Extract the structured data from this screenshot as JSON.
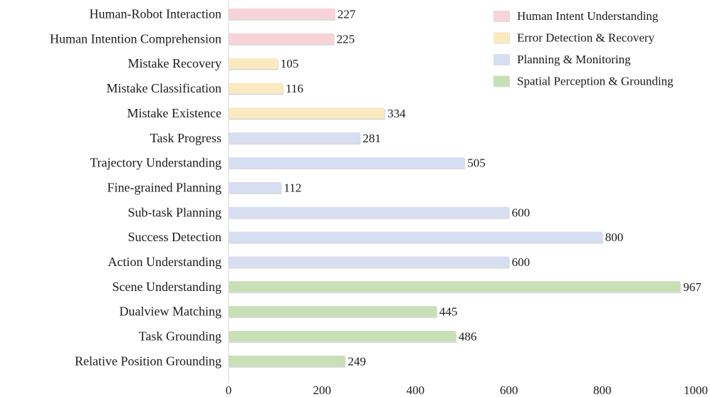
{
  "chart_data": {
    "type": "bar",
    "orientation": "horizontal",
    "title": "",
    "xlabel": "",
    "ylabel": "",
    "xlim": [
      0,
      1000
    ],
    "xticks": [
      0,
      200,
      400,
      600,
      800,
      1000
    ],
    "grid": false,
    "legend_position": "top-right",
    "groups": [
      {
        "name": "Human Intent Understanding",
        "color": "#f8d3d9"
      },
      {
        "name": "Error Detection & Recovery",
        "color": "#fbeac0"
      },
      {
        "name": "Planning & Monitoring",
        "color": "#d7def2"
      },
      {
        "name": "Spatial Perception & Grounding",
        "color": "#c7e0b6"
      }
    ],
    "bars": [
      {
        "category": "Human-Robot Interaction",
        "value": 227,
        "group": 0
      },
      {
        "category": "Human Intention Comprehension",
        "value": 225,
        "group": 0
      },
      {
        "category": "Mistake Recovery",
        "value": 105,
        "group": 1
      },
      {
        "category": "Mistake Classification",
        "value": 116,
        "group": 1
      },
      {
        "category": "Mistake Existence",
        "value": 334,
        "group": 1
      },
      {
        "category": "Task Progress",
        "value": 281,
        "group": 2
      },
      {
        "category": "Trajectory Understanding",
        "value": 505,
        "group": 2
      },
      {
        "category": "Fine-grained Planning",
        "value": 112,
        "group": 2
      },
      {
        "category": "Sub-task Planning",
        "value": 600,
        "group": 2
      },
      {
        "category": "Success Detection",
        "value": 800,
        "group": 2
      },
      {
        "category": "Action Understanding",
        "value": 600,
        "group": 2
      },
      {
        "category": "Scene Understanding",
        "value": 967,
        "group": 3
      },
      {
        "category": "Dualview Matching",
        "value": 445,
        "group": 3
      },
      {
        "category": "Task Grounding",
        "value": 486,
        "group": 3
      },
      {
        "category": "Relative Position Grounding",
        "value": 249,
        "group": 3
      }
    ]
  }
}
